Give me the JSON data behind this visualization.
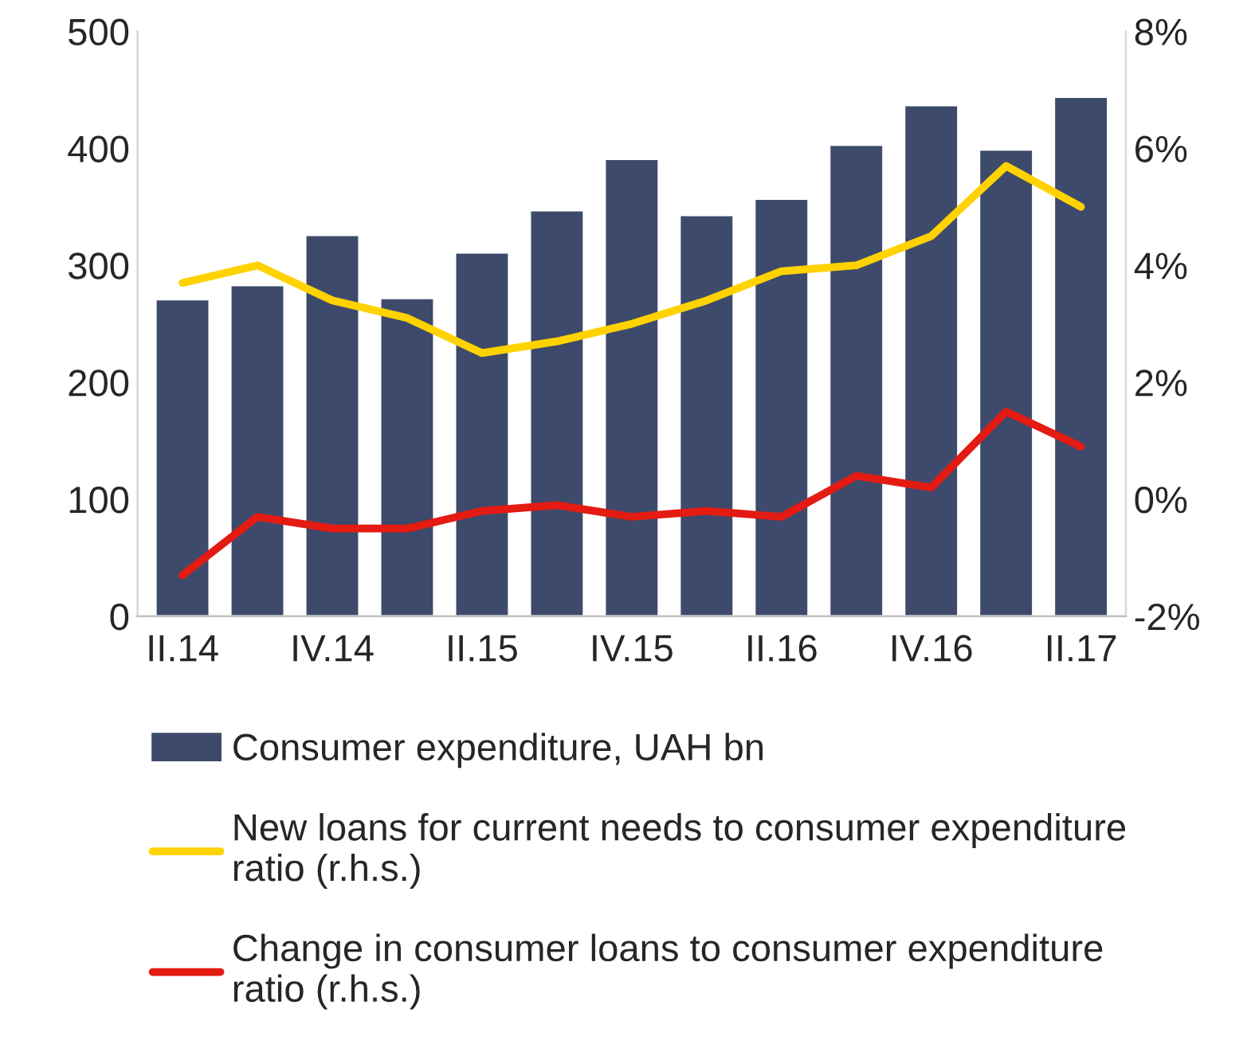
{
  "chart_data": {
    "type": "bar",
    "categories": [
      "II.14",
      null,
      "IV.14",
      null,
      "II.15",
      null,
      "IV.15",
      null,
      "II.16",
      null,
      "IV.16",
      null,
      "II.17"
    ],
    "series": [
      {
        "name": "Consumer expenditure, UAH bn",
        "color": "#3d4a6b",
        "values": [
          271,
          283,
          326,
          272,
          311,
          347,
          391,
          343,
          357,
          403,
          437,
          399,
          444
        ]
      },
      {
        "name": "New loans for current needs to consumer expenditure ratio (r.h.s.)",
        "color": "#ffd200",
        "type": "line",
        "axis": "y2",
        "values": [
          3.7,
          4.0,
          3.4,
          3.1,
          2.5,
          2.7,
          3.0,
          3.4,
          3.9,
          4.0,
          4.5,
          5.7,
          5.0
        ]
      },
      {
        "name": "Change in consumer loans to consumer expenditure ratio (r.h.s.)",
        "color": "#e41b13",
        "type": "line",
        "axis": "y2",
        "values": [
          -1.3,
          -0.3,
          -0.5,
          -0.5,
          -0.2,
          -0.1,
          -0.3,
          -0.2,
          -0.3,
          0.4,
          0.2,
          1.5,
          0.9
        ]
      }
    ],
    "ylim": [
      0,
      500
    ],
    "yticks": [
      0,
      100,
      200,
      300,
      400,
      500
    ],
    "y2lim": [
      -2,
      8
    ],
    "y2ticks": [
      {
        "value": -2,
        "label": "-2%"
      },
      {
        "value": 0,
        "label": "0%"
      },
      {
        "value": 2,
        "label": "2%"
      },
      {
        "value": 4,
        "label": "4%"
      },
      {
        "value": 6,
        "label": "6%"
      },
      {
        "value": 8,
        "label": "8%"
      }
    ],
    "grid": false,
    "legend": "bottom",
    "marker": "none",
    "line_style": "solid"
  }
}
